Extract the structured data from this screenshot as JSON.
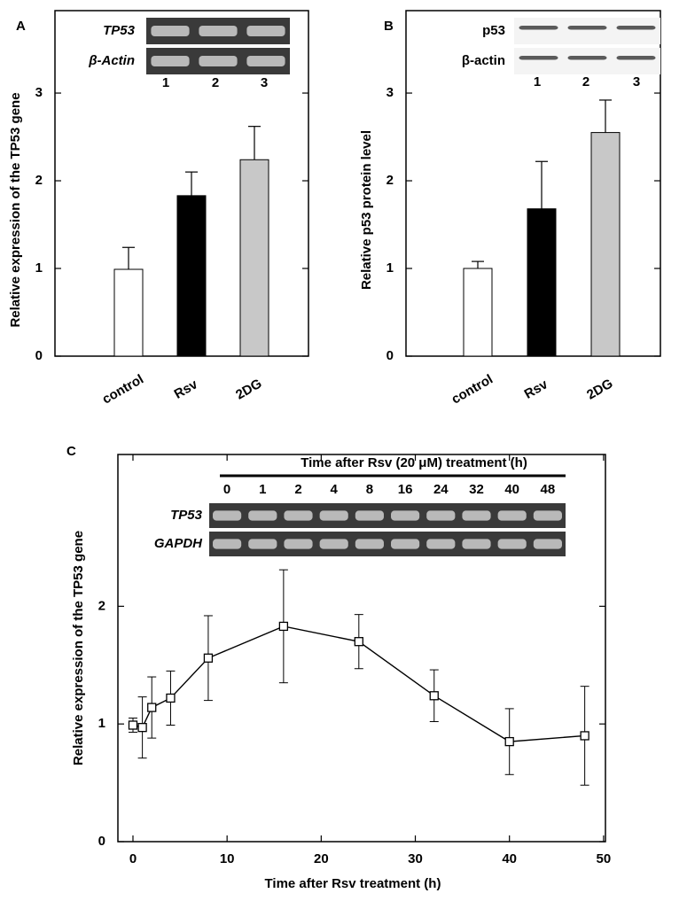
{
  "chart_data": [
    {
      "panel": "A",
      "type": "bar",
      "ylabel": "Relative  expression of the TP53 gene",
      "categories": [
        "control",
        "Rsv",
        "2DG"
      ],
      "values": [
        0.99,
        1.83,
        2.24
      ],
      "errors": [
        0.25,
        0.27,
        0.38
      ],
      "colors": [
        "#ffffff",
        "#000000",
        "#c8c8c8"
      ],
      "ylim": [
        0,
        3.94
      ],
      "yticks": [
        0,
        1,
        2,
        3
      ],
      "inset": {
        "rows": [
          "TP53",
          "β-Actin"
        ],
        "lanes": [
          "1",
          "2",
          "3"
        ]
      }
    },
    {
      "panel": "B",
      "type": "bar",
      "ylabel": "Relative  p53 protein level",
      "categories": [
        "control",
        "Rsv",
        "2DG"
      ],
      "values": [
        1.0,
        1.68,
        2.55
      ],
      "errors": [
        0.08,
        0.54,
        0.37
      ],
      "colors": [
        "#ffffff",
        "#000000",
        "#c8c8c8"
      ],
      "ylim": [
        0,
        3.94
      ],
      "yticks": [
        0,
        1,
        2,
        3
      ],
      "inset": {
        "rows": [
          "p53",
          "β-actin"
        ],
        "lanes": [
          "1",
          "2",
          "3"
        ]
      }
    },
    {
      "panel": "C",
      "type": "line",
      "xlabel": "Time after Rsv treatment (h)",
      "ylabel": "Relative  expression of the TP53 gene",
      "x": [
        0,
        1,
        2,
        4,
        8,
        16,
        24,
        32,
        40,
        48
      ],
      "values": [
        0.99,
        0.97,
        1.14,
        1.22,
        1.56,
        1.83,
        1.7,
        1.24,
        0.85,
        0.9
      ],
      "errors": [
        0.06,
        0.26,
        0.26,
        0.23,
        0.36,
        0.48,
        0.23,
        0.22,
        0.28,
        0.42
      ],
      "color": "#000000",
      "xlim": [
        -1.6,
        50.2
      ],
      "xticks": [
        0,
        10,
        20,
        30,
        40,
        50
      ],
      "ylim": [
        0,
        3.29
      ],
      "yticks": [
        0,
        1,
        2
      ],
      "inset": {
        "header": "Time after Rsv (20 μM) treatment (h)",
        "rows": [
          "TP53",
          "GAPDH"
        ],
        "lanes": [
          "0",
          "1",
          "2",
          "4",
          "8",
          "16",
          "24",
          "32",
          "40",
          "48"
        ]
      }
    }
  ]
}
